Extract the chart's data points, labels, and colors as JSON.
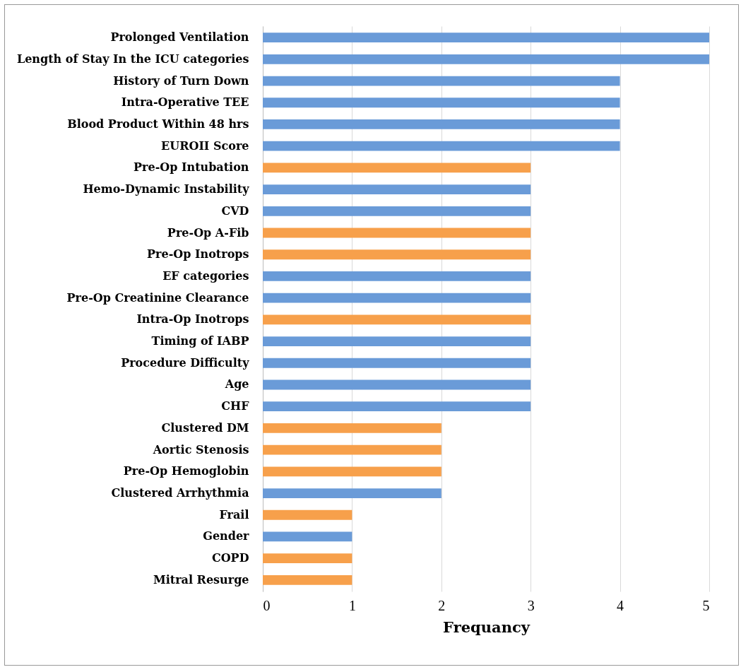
{
  "chart_data": {
    "type": "bar",
    "orientation": "horizontal",
    "xlabel": "Frequancy",
    "categories": [
      "Prolonged Ventilation",
      "Length of Stay In the ICU categories",
      "History of Turn Down",
      "Intra-Operative TEE",
      "Blood Product Within 48 hrs",
      "EUROII Score",
      "Pre-Op Intubation",
      "Hemo-Dynamic Instability",
      "CVD",
      "Pre-Op A-Fib",
      "Pre-Op Inotrops",
      "EF categories",
      "Pre-Op Creatinine Clearance",
      "Intra-Op Inotrops",
      "Timing of IABP",
      "Procedure Difficulty",
      "Age",
      "CHF",
      "Clustered DM",
      "Aortic Stenosis",
      "Pre-Op Hemoglobin",
      "Clustered Arrhythmia",
      "Frail",
      "Gender",
      "COPD",
      "Mitral Resurge"
    ],
    "values": [
      5,
      5,
      4,
      4,
      4,
      4,
      3,
      3,
      3,
      3,
      3,
      3,
      3,
      3,
      3,
      3,
      3,
      3,
      2,
      2,
      2,
      2,
      1,
      1,
      1,
      1
    ],
    "colors": [
      "#6a9bd8",
      "#6a9bd8",
      "#6a9bd8",
      "#6a9bd8",
      "#6a9bd8",
      "#6a9bd8",
      "#f7a04b",
      "#6a9bd8",
      "#6a9bd8",
      "#f7a04b",
      "#f7a04b",
      "#6a9bd8",
      "#6a9bd8",
      "#f7a04b",
      "#6a9bd8",
      "#6a9bd8",
      "#6a9bd8",
      "#6a9bd8",
      "#f7a04b",
      "#f7a04b",
      "#f7a04b",
      "#6a9bd8",
      "#f7a04b",
      "#6a9bd8",
      "#f7a04b",
      "#f7a04b"
    ],
    "xlim": [
      0,
      5
    ],
    "xticks": [
      0,
      1,
      2,
      3,
      4,
      5
    ],
    "grid": "x"
  }
}
